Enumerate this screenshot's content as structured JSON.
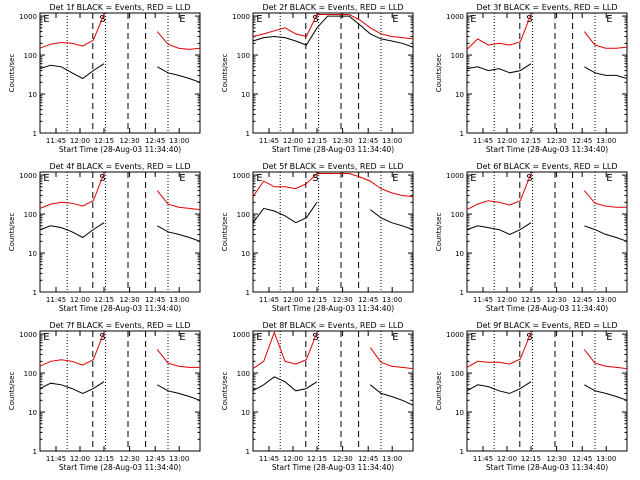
{
  "chart_data": [
    {
      "type": "line",
      "title": "Det 1f BLACK = Events, RED = LLD",
      "xlabel": "Start Time (28-Aug-03 11:34:40)",
      "ylabel": "Counts/sec",
      "yscale": "log",
      "ylim": [
        1,
        1200
      ],
      "x_ticks": [
        "11:45",
        "12:00",
        "12:15",
        "12:30",
        "12:45",
        "13:00"
      ],
      "y_ticks": [
        "1",
        "10",
        "100",
        "1000"
      ],
      "markers": [
        "E",
        "S",
        "E"
      ],
      "series": [
        {
          "name": "LLD",
          "color": "#e00000",
          "values": [
            150,
            190,
            210,
            200,
            170,
            240,
            1100,
            null,
            null,
            null,
            null,
            400,
            190,
            150,
            140,
            150
          ]
        },
        {
          "name": "Events",
          "color": "#000000",
          "values": [
            45,
            55,
            50,
            35,
            25,
            40,
            60,
            null,
            null,
            null,
            null,
            50,
            35,
            30,
            25,
            20
          ]
        }
      ]
    },
    {
      "type": "line",
      "title": "Det 2f BLACK = Events, RED = LLD",
      "xlabel": "Start Time (28-Aug-03 11:34:40)",
      "ylabel": "Counts/sec",
      "yscale": "log",
      "ylim": [
        1,
        1200
      ],
      "x_ticks": [
        "11:45",
        "12:00",
        "12:15",
        "12:30",
        "12:45",
        "13:00"
      ],
      "y_ticks": [
        "1",
        "10",
        "100",
        "1000"
      ],
      "markers": [
        "E",
        "S",
        "E"
      ],
      "series": [
        {
          "name": "LLD",
          "color": "#e00000",
          "values": [
            300,
            350,
            420,
            500,
            350,
            300,
            1100,
            1100,
            1100,
            1100,
            800,
            500,
            350,
            300,
            280,
            260
          ]
        },
        {
          "name": "Events",
          "color": "#000000",
          "values": [
            230,
            280,
            300,
            280,
            230,
            180,
            500,
            1000,
            1000,
            1000,
            600,
            350,
            260,
            230,
            200,
            160
          ]
        }
      ]
    },
    {
      "type": "line",
      "title": "Det 3f BLACK = Events, RED = LLD",
      "xlabel": "Start Time (28-Aug-03 11:34:40)",
      "ylabel": "Counts/sec",
      "yscale": "log",
      "ylim": [
        1,
        1200
      ],
      "x_ticks": [
        "11:45",
        "12:00",
        "12:15",
        "12:30",
        "12:45",
        "13:00"
      ],
      "y_ticks": [
        "1",
        "10",
        "100",
        "1000"
      ],
      "markers": [
        "E",
        "S",
        "E"
      ],
      "series": [
        {
          "name": "LLD",
          "color": "#e00000",
          "values": [
            140,
            260,
            180,
            200,
            180,
            220,
            1100,
            null,
            null,
            null,
            null,
            400,
            180,
            150,
            150,
            160
          ]
        },
        {
          "name": "Events",
          "color": "#000000",
          "values": [
            45,
            50,
            40,
            45,
            35,
            40,
            60,
            null,
            null,
            null,
            null,
            50,
            35,
            30,
            30,
            25
          ]
        }
      ]
    },
    {
      "type": "line",
      "title": "Det 4f BLACK = Events, RED = LLD",
      "xlabel": "Start Time (28-Aug-03 11:34:40)",
      "ylabel": "Counts/sec",
      "yscale": "log",
      "ylim": [
        1,
        1200
      ],
      "x_ticks": [
        "11:45",
        "12:00",
        "12:15",
        "12:30",
        "12:45",
        "13:00"
      ],
      "y_ticks": [
        "1",
        "10",
        "100",
        "1000"
      ],
      "markers": [
        "E",
        "S",
        "E"
      ],
      "series": [
        {
          "name": "LLD",
          "color": "#e00000",
          "values": [
            140,
            180,
            200,
            190,
            160,
            220,
            1100,
            null,
            null,
            null,
            null,
            400,
            180,
            150,
            140,
            130
          ]
        },
        {
          "name": "Events",
          "color": "#000000",
          "values": [
            40,
            50,
            45,
            35,
            25,
            40,
            60,
            null,
            null,
            null,
            null,
            50,
            35,
            30,
            25,
            20
          ]
        }
      ]
    },
    {
      "type": "line",
      "title": "Det 5f BLACK = Events, RED = LLD",
      "xlabel": "Start Time (28-Aug-03 11:34:40)",
      "ylabel": "Counts/sec",
      "yscale": "log",
      "ylim": [
        1,
        1200
      ],
      "x_ticks": [
        "11:45",
        "12:00",
        "12:15",
        "12:30",
        "12:45",
        "13:00"
      ],
      "y_ticks": [
        "1",
        "10",
        "100",
        "1000"
      ],
      "markers": [
        "E",
        "S",
        "E"
      ],
      "series": [
        {
          "name": "LLD",
          "color": "#e00000",
          "values": [
            280,
            700,
            500,
            500,
            450,
            600,
            1100,
            1100,
            1100,
            1100,
            900,
            700,
            450,
            350,
            300,
            280
          ]
        },
        {
          "name": "Events",
          "color": "#000000",
          "values": [
            60,
            140,
            120,
            90,
            60,
            80,
            200,
            null,
            null,
            null,
            null,
            130,
            80,
            60,
            50,
            40
          ]
        }
      ]
    },
    {
      "type": "line",
      "title": "Det 6f BLACK = Events, RED = LLD",
      "xlabel": "Start Time (28-Aug-03 11:34:40)",
      "ylabel": "Counts/sec",
      "yscale": "log",
      "ylim": [
        1,
        1200
      ],
      "x_ticks": [
        "11:45",
        "12:00",
        "12:15",
        "12:30",
        "12:45",
        "13:00"
      ],
      "y_ticks": [
        "1",
        "10",
        "100",
        "1000"
      ],
      "markers": [
        "E",
        "S",
        "E"
      ],
      "series": [
        {
          "name": "LLD",
          "color": "#e00000",
          "values": [
            130,
            180,
            220,
            200,
            170,
            220,
            1100,
            null,
            null,
            null,
            null,
            400,
            190,
            160,
            150,
            150
          ]
        },
        {
          "name": "Events",
          "color": "#000000",
          "values": [
            40,
            50,
            45,
            40,
            30,
            40,
            60,
            null,
            null,
            null,
            null,
            50,
            40,
            30,
            25,
            20
          ]
        }
      ]
    },
    {
      "type": "line",
      "title": "Det 7f BLACK = Events, RED = LLD",
      "xlabel": "Start Time (28-Aug-03 11:34:40)",
      "ylabel": "Counts/sec",
      "yscale": "log",
      "ylim": [
        1,
        1200
      ],
      "x_ticks": [
        "11:45",
        "12:00",
        "12:15",
        "12:30",
        "12:45",
        "13:00"
      ],
      "y_ticks": [
        "1",
        "10",
        "100",
        "1000"
      ],
      "markers": [
        "E",
        "S",
        "E"
      ],
      "series": [
        {
          "name": "LLD",
          "color": "#e00000",
          "values": [
            150,
            200,
            220,
            200,
            160,
            220,
            1100,
            null,
            null,
            null,
            null,
            400,
            180,
            150,
            140,
            140
          ]
        },
        {
          "name": "Events",
          "color": "#000000",
          "values": [
            40,
            55,
            50,
            40,
            30,
            40,
            60,
            null,
            null,
            null,
            null,
            50,
            35,
            30,
            25,
            20
          ]
        }
      ]
    },
    {
      "type": "line",
      "title": "Det 8f BLACK = Events, RED = LLD",
      "xlabel": "Start Time (28-Aug-03 11:34:40)",
      "ylabel": "Counts/sec",
      "yscale": "log",
      "ylim": [
        1,
        1200
      ],
      "x_ticks": [
        "11:45",
        "12:00",
        "12:15",
        "12:30",
        "12:45",
        "13:00"
      ],
      "y_ticks": [
        "1",
        "10",
        "100",
        "1000"
      ],
      "markers": [
        "E",
        "S",
        "E"
      ],
      "series": [
        {
          "name": "LLD",
          "color": "#e00000",
          "values": [
            130,
            200,
            1100,
            200,
            170,
            220,
            1100,
            null,
            null,
            null,
            null,
            450,
            190,
            150,
            140,
            130
          ]
        },
        {
          "name": "Events",
          "color": "#000000",
          "values": [
            35,
            50,
            80,
            60,
            35,
            40,
            60,
            null,
            null,
            null,
            null,
            50,
            30,
            25,
            20,
            15
          ]
        }
      ]
    },
    {
      "type": "line",
      "title": "Det 9f BLACK = Events, RED = LLD",
      "xlabel": "Start Time (28-Aug-03 11:34:40)",
      "ylabel": "Counts/sec",
      "yscale": "log",
      "ylim": [
        1,
        1200
      ],
      "x_ticks": [
        "11:45",
        "12:00",
        "12:15",
        "12:30",
        "12:45",
        "13:00"
      ],
      "y_ticks": [
        "1",
        "10",
        "100",
        "1000"
      ],
      "markers": [
        "E",
        "S",
        "E"
      ],
      "series": [
        {
          "name": "LLD",
          "color": "#e00000",
          "values": [
            140,
            200,
            190,
            190,
            170,
            230,
            1100,
            null,
            null,
            null,
            null,
            400,
            180,
            150,
            140,
            130
          ]
        },
        {
          "name": "Events",
          "color": "#000000",
          "values": [
            35,
            50,
            45,
            35,
            30,
            40,
            60,
            null,
            null,
            null,
            null,
            50,
            35,
            30,
            25,
            20
          ]
        }
      ]
    }
  ]
}
